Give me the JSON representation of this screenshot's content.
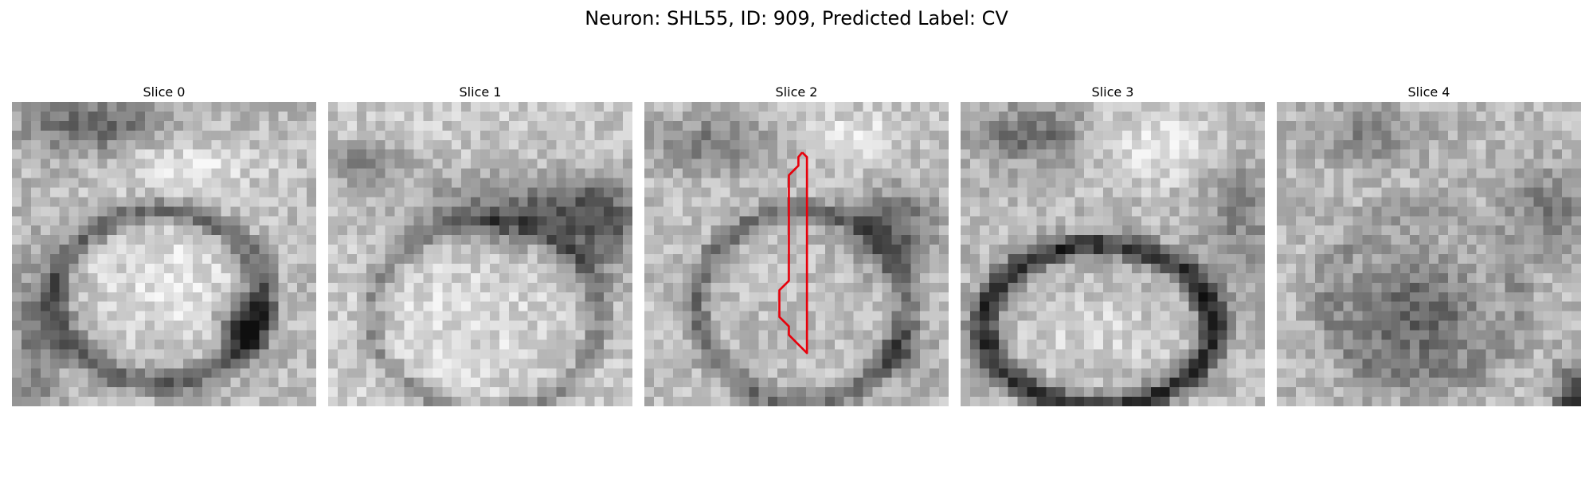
{
  "figure": {
    "title": "Neuron: SHL55, ID: 909, Predicted Label: CV"
  },
  "panels": [
    {
      "title": "Slice 0"
    },
    {
      "title": "Slice 1"
    },
    {
      "title": "Slice 2"
    },
    {
      "title": "Slice 3"
    },
    {
      "title": "Slice 4"
    }
  ],
  "colors": {
    "segmentation_outline": "#e8000b",
    "colormap": "grayscale"
  }
}
